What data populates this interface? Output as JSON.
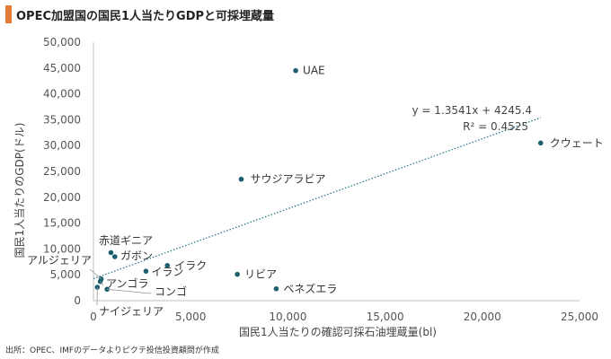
{
  "title": "OPEC加盟国の国民1人当たりGDPと可採埋蔵量",
  "source": "出所：OPEC、IMFのデータよりピクテ投信投資顧問が作成",
  "chart_data": {
    "type": "scatter",
    "title": "OPEC加盟国の国民1人当たりGDPと可採埋蔵量",
    "xlabel": "国民1人当たりの確認可採石油埋蔵量(bl)",
    "ylabel": "国民1人当たりのGDP(ドル)",
    "xlim": [
      0,
      25000
    ],
    "ylim": [
      0,
      50000
    ],
    "xticks": [
      "0",
      "5,000",
      "10,000",
      "15,000",
      "20,000",
      "25,000"
    ],
    "xtick_values": [
      0,
      5000,
      10000,
      15000,
      20000,
      25000
    ],
    "yticks": [
      "0",
      "5,000",
      "10,000",
      "15,000",
      "20,000",
      "25,000",
      "30,000",
      "35,000",
      "40,000",
      "45,000",
      "50,000"
    ],
    "ytick_values": [
      0,
      5000,
      10000,
      15000,
      20000,
      25000,
      30000,
      35000,
      40000,
      45000,
      50000
    ],
    "grid": false,
    "point_color": "#1b5e6e",
    "trendline_color": "#2a7a8c",
    "points": [
      {
        "label": "UAE",
        "x": 10400,
        "y": 44500
      },
      {
        "label": "クウェート",
        "x": 23000,
        "y": 30500
      },
      {
        "label": "サウジアラビア",
        "x": 7600,
        "y": 23500
      },
      {
        "label": "赤道ギニア",
        "x": 900,
        "y": 9300
      },
      {
        "label": "ガボン",
        "x": 1100,
        "y": 8500
      },
      {
        "label": "イラク",
        "x": 3800,
        "y": 6800
      },
      {
        "label": "イラン",
        "x": 2700,
        "y": 5700
      },
      {
        "label": "リビア",
        "x": 7400,
        "y": 5100
      },
      {
        "label": "ベネズエラ",
        "x": 9400,
        "y": 2300
      },
      {
        "label": "アルジェリア",
        "x": 400,
        "y": 4200
      },
      {
        "label": "アンゴラ",
        "x": 350,
        "y": 3700
      },
      {
        "label": "コンゴ",
        "x": 700,
        "y": 2200
      },
      {
        "label": "ナイジェリア",
        "x": 200,
        "y": 2600
      }
    ],
    "trendline": {
      "slope": 1.3541,
      "intercept": 4245.4,
      "x_range": [
        0,
        23000
      ],
      "equation": "y = 1.3541x + 4245.4",
      "r2": "R² = 0.4525"
    }
  }
}
